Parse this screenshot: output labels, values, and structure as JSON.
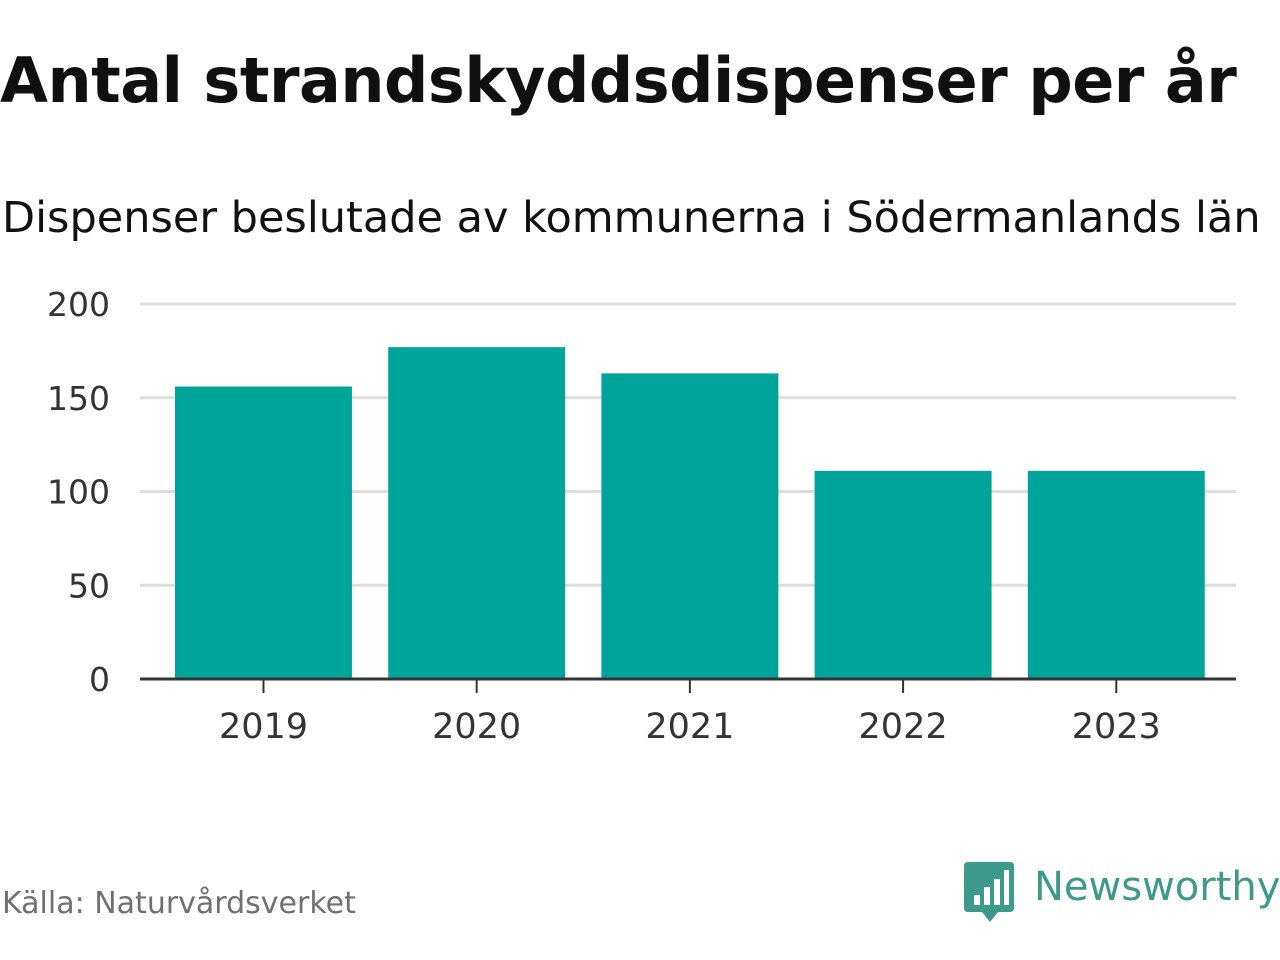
{
  "chart_data": {
    "type": "bar",
    "title": "Antal strandskyddsdispenser per år",
    "subtitle": "Dispenser beslutade av kommunerna i Södermanlands län",
    "categories": [
      "2019",
      "2020",
      "2021",
      "2022",
      "2023"
    ],
    "values": [
      156,
      177,
      163,
      111,
      111
    ],
    "y_ticks": [
      0,
      50,
      100,
      150,
      200
    ],
    "ylim": [
      0,
      200
    ],
    "xlabel": "",
    "ylabel": "",
    "grid": true,
    "bar_color": "#00a49a"
  },
  "footer": {
    "source": "Källa: Naturvårdsverket",
    "brand": "Newsworthy",
    "logo_icon": "bar-chart-bubble-icon",
    "brand_color": "#3d9a8b"
  }
}
